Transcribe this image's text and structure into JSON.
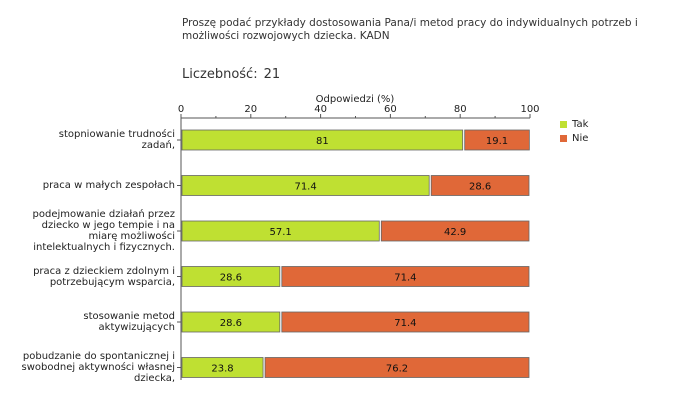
{
  "header": {
    "title": "Proszę podać przykłady dostosowania Pana/i metod pracy do indywidualnych potrzeb i\nmożliwości rozwojowych dziecka.  KADN",
    "count_label": "Liczebność:",
    "count_value": "21"
  },
  "colors": {
    "tak": "#bfe032",
    "nie": "#e06838",
    "bar_border": "#666666"
  },
  "chart_data": {
    "type": "bar",
    "orientation": "horizontal",
    "stacked": true,
    "xlabel": "Odpowiedzi (%)",
    "xlim": [
      0,
      100
    ],
    "xticks": [
      0,
      20,
      40,
      60,
      80,
      100
    ],
    "categories": [
      "stopniowanie trudności zadań,",
      "praca w małych zespołach",
      "podejmowanie działań przez dziecko w jego tempie i na miarę możliwości intelektualnych i fizycznych.",
      "praca z dzieckiem zdolnym i potrzebującym wsparcia,",
      "stosowanie metod aktywizujących",
      "pobudzanie do spontanicznej i swobodnej aktywności własnej dziecka,"
    ],
    "series": [
      {
        "name": "Tak",
        "values": [
          81,
          71.4,
          57.1,
          28.6,
          28.6,
          23.8
        ],
        "labels": [
          "81",
          "71.4",
          "57.1",
          "28.6",
          "28.6",
          "23.8"
        ]
      },
      {
        "name": "Nie",
        "values": [
          19.1,
          28.6,
          42.9,
          71.4,
          71.4,
          76.2
        ],
        "labels": [
          "19.1",
          "28.6",
          "42.9",
          "71.4",
          "71.4",
          "76.2"
        ]
      }
    ],
    "legend_position": "right",
    "grid": false
  }
}
